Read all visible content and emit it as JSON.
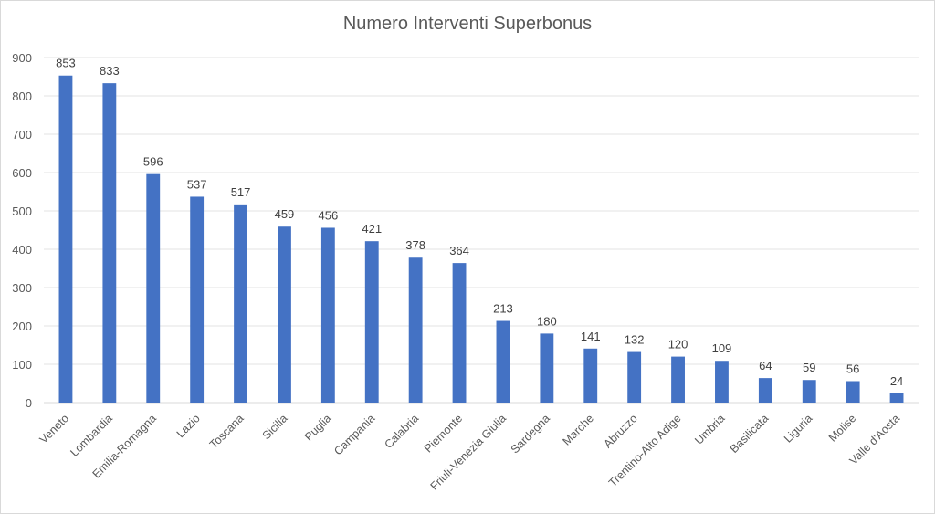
{
  "chart_data": {
    "type": "bar",
    "title": "Numero Interventi Superbonus",
    "xlabel": "",
    "ylabel": "",
    "ylim": [
      0,
      900
    ],
    "yticks": [
      0,
      100,
      200,
      300,
      400,
      500,
      600,
      700,
      800,
      900
    ],
    "grid": true,
    "legend": "none",
    "bar_color": "#4472c4",
    "categories": [
      "Veneto",
      "Lombardia",
      "Emilia-Romagna",
      "Lazio",
      "Toscana",
      "Sicilia",
      "Puglia",
      "Campania",
      "Calabria",
      "Piemonte",
      "Friuli-Venezia Giulia",
      "Sardegna",
      "Marche",
      "Abruzzo",
      "Trentino-Alto Adige",
      "Umbria",
      "Basilicata",
      "Liguria",
      "Molise",
      "Valle d'Aosta"
    ],
    "values": [
      853,
      833,
      596,
      537,
      517,
      459,
      456,
      421,
      378,
      364,
      213,
      180,
      141,
      132,
      120,
      109,
      64,
      59,
      56,
      24
    ]
  }
}
